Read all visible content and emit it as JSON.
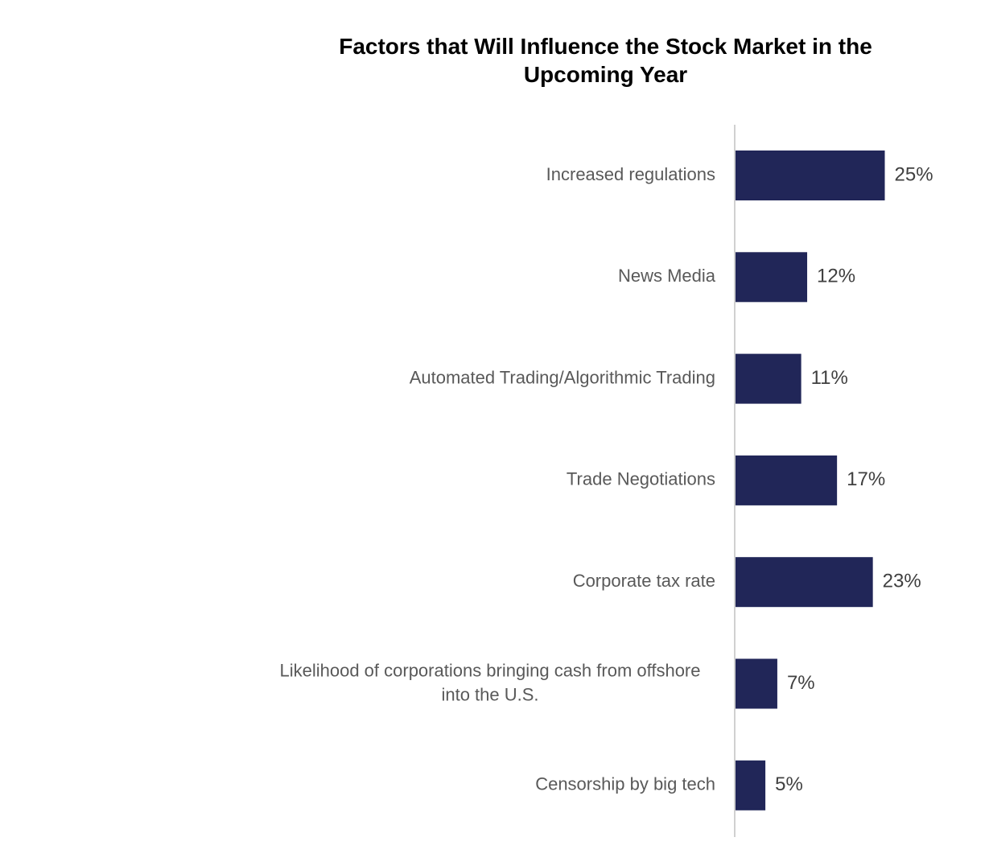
{
  "chart_data": {
    "type": "bar",
    "orientation": "horizontal",
    "title": "Factors that Will Influence the Stock Market in the Upcoming Year",
    "categories": [
      "Increased regulations",
      "News Media",
      "Automated Trading/Algorithmic Trading",
      "Trade Negotiations",
      "Corporate tax rate",
      "Likelihood of corporations bringing cash from offshore into the U.S.",
      "Censorship by big tech"
    ],
    "category_label_lines": [
      [
        "Increased regulations"
      ],
      [
        "News Media"
      ],
      [
        "Automated Trading/Algorithmic Trading"
      ],
      [
        "Trade Negotiations"
      ],
      [
        "Corporate tax rate"
      ],
      [
        "Likelihood of corporations bringing cash from offshore",
        "into the U.S."
      ],
      [
        "Censorship by big tech"
      ]
    ],
    "values": [
      25,
      12,
      11,
      17,
      23,
      7,
      5
    ],
    "value_labels": [
      "25%",
      "12%",
      "11%",
      "17%",
      "23%",
      "7%",
      "5%"
    ],
    "unit": "%",
    "xlim": [
      0,
      100
    ],
    "grid": false,
    "legend": "none",
    "colors": {
      "bar": "#212658",
      "axis": "#d0d0d0",
      "category_text": "#595959",
      "value_text": "#404040"
    }
  }
}
